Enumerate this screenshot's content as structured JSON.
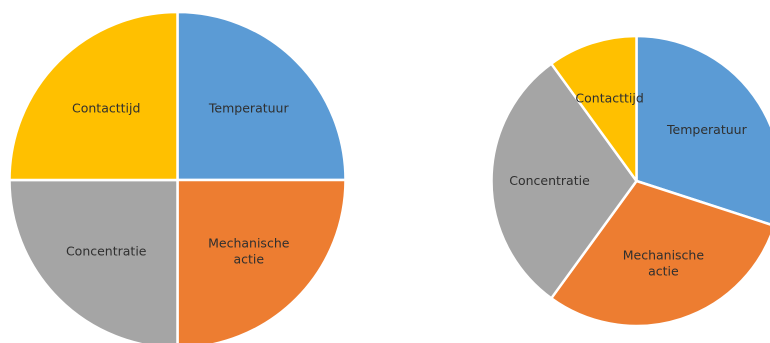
{
  "chart_data": [
    {
      "type": "pie",
      "title": "",
      "start_angle_deg": 0,
      "direction": "clockwise",
      "slices": [
        {
          "label": [
            "Temperatuur"
          ],
          "value": 25,
          "color": "#5B9BD5"
        },
        {
          "label": [
            "Mechanische",
            "actie"
          ],
          "value": 25,
          "color": "#ED7D31"
        },
        {
          "label": [
            "Concentratie"
          ],
          "value": 25,
          "color": "#A5A5A5"
        },
        {
          "label": [
            "Contacttijd"
          ],
          "value": 25,
          "color": "#FFC000"
        }
      ],
      "legend": "none"
    },
    {
      "type": "pie",
      "title": "",
      "start_angle_deg": 0,
      "direction": "clockwise",
      "slices": [
        {
          "label": [
            "Temperatuur"
          ],
          "value": 30,
          "color": "#5B9BD5"
        },
        {
          "label": [
            "Mechanische",
            "actie"
          ],
          "value": 30,
          "color": "#ED7D31"
        },
        {
          "label": [
            "Concentratie"
          ],
          "value": 30,
          "color": "#A5A5A5"
        },
        {
          "label": [
            "Contacttijd"
          ],
          "value": 10,
          "color": "#FFC000"
        }
      ],
      "legend": "none"
    }
  ]
}
